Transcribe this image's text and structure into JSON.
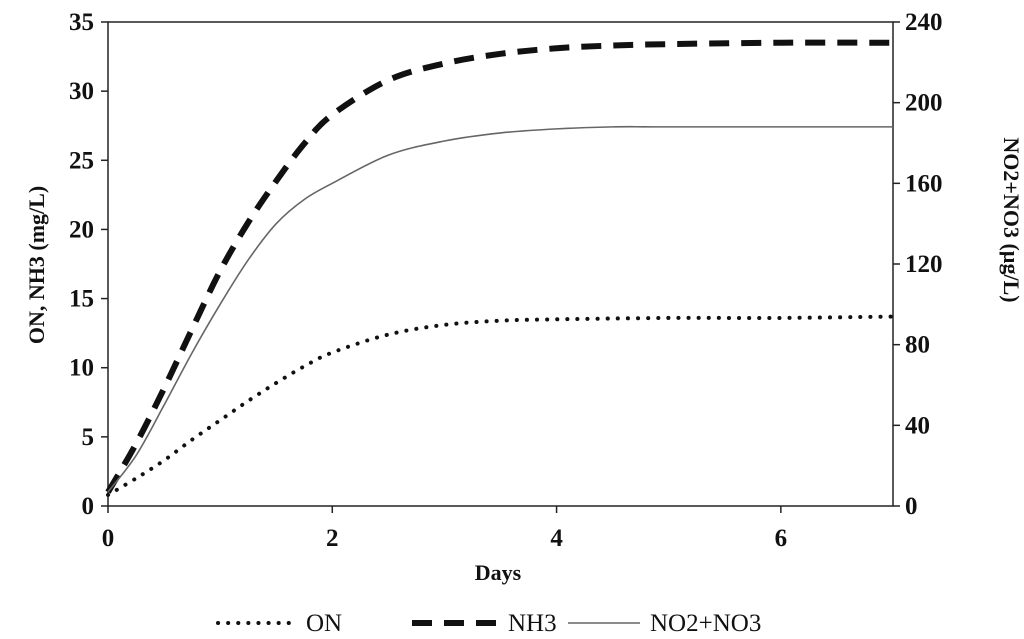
{
  "chart_data": {
    "type": "line",
    "xlabel": "Days",
    "ylabel_left": "ON, NH3 (mg/L)",
    "ylabel_right": "NO2+NO3 (µg/L)",
    "xlim": [
      0,
      7
    ],
    "ylim_left": [
      0,
      35
    ],
    "ylim_right": [
      0,
      240
    ],
    "x_ticks": [
      "0",
      "2",
      "4",
      "6"
    ],
    "y_ticks_left": [
      "0",
      "5",
      "10",
      "15",
      "20",
      "25",
      "30",
      "35"
    ],
    "y_ticks_right": [
      "0",
      "40",
      "80",
      "120",
      "160",
      "200",
      "240"
    ],
    "grid": false,
    "legend_position": "bottom",
    "series": [
      {
        "name": "ON",
        "axis": "left",
        "style": "dotted",
        "color": "#111111",
        "x": [
          0,
          0.25,
          0.5,
          0.75,
          1,
          1.25,
          1.5,
          1.75,
          2,
          2.5,
          3,
          3.5,
          4,
          5,
          6,
          7
        ],
        "y": [
          0.8,
          2.0,
          3.3,
          4.8,
          6.2,
          7.6,
          8.9,
          10.1,
          11.1,
          12.4,
          13.1,
          13.4,
          13.5,
          13.6,
          13.6,
          13.7
        ]
      },
      {
        "name": "NH3",
        "axis": "left",
        "style": "dashed",
        "color": "#111111",
        "x": [
          0,
          0.25,
          0.5,
          0.75,
          1,
          1.25,
          1.5,
          1.75,
          2,
          2.5,
          3,
          3.5,
          4,
          4.5,
          5,
          6,
          7
        ],
        "y": [
          1.0,
          4.5,
          8.5,
          12.8,
          17.0,
          20.5,
          23.5,
          26.2,
          28.3,
          30.8,
          32.0,
          32.7,
          33.1,
          33.3,
          33.4,
          33.5,
          33.5
        ]
      },
      {
        "name": "NO2+NO3",
        "axis": "right",
        "style": "solid",
        "color": "#666666",
        "x": [
          0,
          0.25,
          0.5,
          0.75,
          1,
          1.25,
          1.5,
          1.75,
          2,
          2.5,
          3,
          3.5,
          4,
          4.5,
          5,
          6,
          7
        ],
        "y": [
          7,
          25,
          50,
          76,
          100,
          122,
          140,
          152,
          160,
          174,
          181,
          185,
          187,
          188,
          188,
          188,
          188
        ]
      }
    ]
  }
}
